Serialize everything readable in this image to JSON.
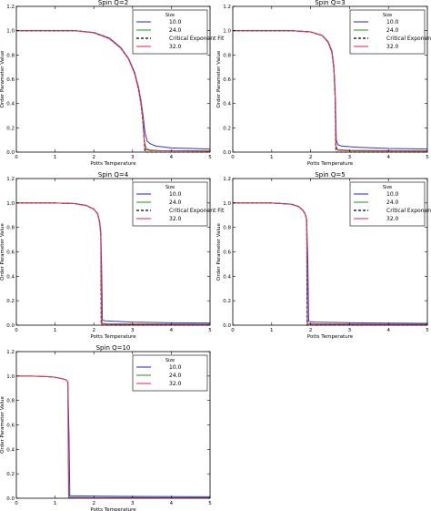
{
  "chart_data": [
    {
      "type": "line",
      "title": "Spin Q=2",
      "xlabel": "Potts Temperature",
      "ylabel": "Order Parameter Value",
      "xlim": [
        0,
        5
      ],
      "ylim": [
        0,
        1.2
      ],
      "xticks": [
        "0",
        "1",
        "2",
        "3",
        "4",
        "5"
      ],
      "yticks": [
        "0.0",
        "0.2",
        "0.4",
        "0.6",
        "0.8",
        "1.0",
        "1.2"
      ],
      "legend": {
        "title": "Size",
        "location": "top-right"
      },
      "grid": false,
      "series": [
        {
          "name": "10.0",
          "color": "#3333cc",
          "dash": false,
          "x": [
            0,
            1.5,
            2.0,
            2.4,
            2.7,
            2.9,
            3.05,
            3.15,
            3.22,
            3.27,
            3.32,
            3.38,
            3.45,
            3.6,
            4.0,
            5.0
          ],
          "y": [
            1.0,
            1.0,
            0.985,
            0.94,
            0.86,
            0.77,
            0.66,
            0.54,
            0.42,
            0.3,
            0.16,
            0.09,
            0.07,
            0.05,
            0.035,
            0.025
          ]
        },
        {
          "name": "24.0",
          "color": "#2ca02c",
          "dash": false,
          "x": [
            0,
            1.5,
            2.0,
            2.4,
            2.7,
            2.9,
            3.05,
            3.15,
            3.22,
            3.27,
            3.3,
            3.35,
            3.45,
            3.7,
            5.0
          ],
          "y": [
            1.0,
            1.0,
            0.983,
            0.935,
            0.855,
            0.765,
            0.65,
            0.53,
            0.4,
            0.26,
            0.1,
            0.03,
            0.018,
            0.012,
            0.01
          ]
        },
        {
          "name": "Critical Exponent Fit",
          "color": "#000000",
          "dash": true,
          "x": [
            0,
            1.5,
            2.0,
            2.4,
            2.7,
            2.9,
            3.05,
            3.15,
            3.22,
            3.27,
            3.3,
            3.32,
            5.0
          ],
          "y": [
            1.0,
            1.0,
            0.983,
            0.935,
            0.855,
            0.765,
            0.65,
            0.52,
            0.39,
            0.24,
            0.1,
            0.0,
            0.0
          ]
        },
        {
          "name": "32.0",
          "color": "#e8315a",
          "dash": false,
          "x": [
            0,
            1.5,
            2.0,
            2.4,
            2.7,
            2.9,
            3.05,
            3.15,
            3.22,
            3.27,
            3.3,
            3.33,
            3.45,
            5.0
          ],
          "y": [
            1.0,
            1.0,
            0.983,
            0.935,
            0.855,
            0.765,
            0.65,
            0.53,
            0.4,
            0.26,
            0.1,
            0.02,
            0.012,
            0.008
          ]
        }
      ]
    },
    {
      "type": "line",
      "title": "Spin Q=3",
      "xlabel": "Potts Temperature",
      "ylabel": "Order Parameter Value",
      "xlim": [
        0,
        5
      ],
      "ylim": [
        0,
        1.2
      ],
      "xticks": [
        "0",
        "1",
        "2",
        "3",
        "4",
        "5"
      ],
      "yticks": [
        "0.0",
        "0.2",
        "0.4",
        "0.6",
        "0.8",
        "1.0",
        "1.2"
      ],
      "legend": {
        "title": "Size",
        "location": "top-right"
      },
      "grid": false,
      "series": [
        {
          "name": "10.0",
          "color": "#3333cc",
          "dash": false,
          "x": [
            0,
            1.5,
            2.0,
            2.3,
            2.45,
            2.55,
            2.6,
            2.63,
            2.66,
            2.7,
            2.8,
            3.2,
            4.0,
            5.0
          ],
          "y": [
            1.0,
            1.0,
            0.99,
            0.96,
            0.91,
            0.83,
            0.7,
            0.5,
            0.1,
            0.06,
            0.05,
            0.04,
            0.03,
            0.025
          ]
        },
        {
          "name": "24.0",
          "color": "#2ca02c",
          "dash": false,
          "x": [
            0,
            1.5,
            2.0,
            2.3,
            2.45,
            2.55,
            2.6,
            2.63,
            2.65,
            2.7,
            3.0,
            5.0
          ],
          "y": [
            1.0,
            1.0,
            0.99,
            0.96,
            0.905,
            0.82,
            0.68,
            0.45,
            0.05,
            0.02,
            0.015,
            0.01
          ]
        },
        {
          "name": "Critical Exponent Fit",
          "color": "#000000",
          "dash": true,
          "x": [
            0,
            1.5,
            2.0,
            2.3,
            2.45,
            2.55,
            2.6,
            2.63,
            2.65,
            5.0
          ],
          "y": [
            1.0,
            1.0,
            0.99,
            0.96,
            0.905,
            0.82,
            0.68,
            0.45,
            0.0,
            0.0
          ]
        },
        {
          "name": "32.0",
          "color": "#e8315a",
          "dash": false,
          "x": [
            0,
            1.5,
            2.0,
            2.3,
            2.45,
            2.55,
            2.6,
            2.63,
            2.65,
            2.7,
            3.0,
            5.0
          ],
          "y": [
            1.0,
            1.0,
            0.99,
            0.96,
            0.905,
            0.82,
            0.68,
            0.45,
            0.04,
            0.015,
            0.01,
            0.008
          ]
        }
      ]
    },
    {
      "type": "line",
      "title": "Spin Q=4",
      "xlabel": "Potts Temperature",
      "ylabel": "Order Parameter Value",
      "xlim": [
        0,
        5
      ],
      "ylim": [
        0,
        1.2
      ],
      "xticks": [
        "0",
        "1",
        "2",
        "3",
        "4",
        "5"
      ],
      "yticks": [
        "0.0",
        "0.2",
        "0.4",
        "0.6",
        "0.8",
        "1.0",
        "1.2"
      ],
      "legend": {
        "title": "Size",
        "location": "top-right"
      },
      "grid": false,
      "series": [
        {
          "name": "10.0",
          "color": "#3333cc",
          "dash": false,
          "x": [
            0,
            1.0,
            1.5,
            1.8,
            2.0,
            2.1,
            2.15,
            2.18,
            2.2,
            2.22,
            2.3,
            3.0,
            4.0,
            5.0
          ],
          "y": [
            1.0,
            1.0,
            0.995,
            0.98,
            0.95,
            0.91,
            0.85,
            0.76,
            0.5,
            0.04,
            0.035,
            0.025,
            0.02,
            0.018
          ]
        },
        {
          "name": "24.0",
          "color": "#2ca02c",
          "dash": false,
          "x": [
            0,
            1.0,
            1.5,
            1.8,
            2.0,
            2.1,
            2.15,
            2.18,
            2.19,
            2.21,
            2.4,
            5.0
          ],
          "y": [
            1.0,
            1.0,
            0.995,
            0.98,
            0.95,
            0.91,
            0.84,
            0.74,
            0.3,
            0.015,
            0.01,
            0.008
          ]
        },
        {
          "name": "Critical Exponent Fit",
          "color": "#000000",
          "dash": true,
          "x": [
            0,
            1.0,
            1.5,
            1.8,
            2.0,
            2.1,
            2.15,
            2.18,
            2.19,
            5.0
          ],
          "y": [
            1.0,
            1.0,
            0.995,
            0.98,
            0.95,
            0.91,
            0.84,
            0.74,
            0.0,
            0.0
          ]
        },
        {
          "name": "32.0",
          "color": "#e8315a",
          "dash": false,
          "x": [
            0,
            1.0,
            1.5,
            1.8,
            2.0,
            2.1,
            2.15,
            2.18,
            2.19,
            2.2,
            2.4,
            5.0
          ],
          "y": [
            1.0,
            1.0,
            0.995,
            0.98,
            0.95,
            0.91,
            0.84,
            0.74,
            0.4,
            0.01,
            0.008,
            0.006
          ]
        }
      ]
    },
    {
      "type": "line",
      "title": "Spin Q=5",
      "xlabel": "Potts Temperature",
      "ylabel": "Order Parameter Value",
      "xlim": [
        0,
        5
      ],
      "ylim": [
        0,
        1.2
      ],
      "xticks": [
        "0",
        "1",
        "2",
        "3",
        "4",
        "5"
      ],
      "yticks": [
        "0.0",
        "0.2",
        "0.4",
        "0.6",
        "0.8",
        "1.0",
        "1.2"
      ],
      "legend": {
        "title": "Size",
        "location": "top-right"
      },
      "grid": false,
      "series": [
        {
          "name": "10.0",
          "color": "#3333cc",
          "dash": false,
          "x": [
            0,
            1.0,
            1.5,
            1.7,
            1.8,
            1.86,
            1.9,
            1.93,
            1.95,
            2.1,
            3.0,
            5.0
          ],
          "y": [
            1.0,
            1.0,
            0.99,
            0.97,
            0.94,
            0.91,
            0.86,
            0.5,
            0.03,
            0.025,
            0.02,
            0.015
          ]
        },
        {
          "name": "24.0",
          "color": "#2ca02c",
          "dash": false,
          "x": [
            0,
            1.0,
            1.5,
            1.7,
            1.8,
            1.86,
            1.9,
            1.91,
            1.92,
            2.2,
            5.0
          ],
          "y": [
            1.0,
            1.0,
            0.99,
            0.97,
            0.94,
            0.91,
            0.86,
            0.3,
            0.012,
            0.01,
            0.008
          ]
        },
        {
          "name": "Critical Exponent Fit",
          "color": "#000000",
          "dash": true,
          "x": [
            0,
            1.0,
            1.5,
            1.7,
            1.8,
            1.86,
            1.9,
            1.91,
            5.0
          ],
          "y": [
            1.0,
            1.0,
            0.99,
            0.97,
            0.94,
            0.91,
            0.86,
            0.0,
            0.0
          ]
        },
        {
          "name": "32.0",
          "color": "#e8315a",
          "dash": false,
          "x": [
            0,
            1.0,
            1.5,
            1.7,
            1.8,
            1.86,
            1.9,
            1.91,
            1.92,
            2.2,
            5.0
          ],
          "y": [
            1.0,
            1.0,
            0.99,
            0.97,
            0.94,
            0.91,
            0.86,
            0.4,
            0.01,
            0.008,
            0.006
          ]
        }
      ]
    },
    {
      "type": "line",
      "title": "Spin Q=10",
      "xlabel": "Potts Temperature",
      "ylabel": "Order Parameter Value",
      "xlim": [
        0,
        5
      ],
      "ylim": [
        0,
        1.2
      ],
      "xticks": [
        "0",
        "1",
        "2",
        "3",
        "4",
        "5"
      ],
      "yticks": [
        "0.0",
        "0.2",
        "0.4",
        "0.6",
        "0.8",
        "1.0",
        "1.2"
      ],
      "legend": {
        "title": "Size",
        "location": "top-right"
      },
      "grid": false,
      "series": [
        {
          "name": "10.0",
          "color": "#3333cc",
          "dash": false,
          "x": [
            0,
            0.4,
            0.8,
            1.0,
            1.15,
            1.28,
            1.33,
            1.36,
            1.38,
            1.5,
            2.0,
            3.0,
            5.0
          ],
          "y": [
            1.0,
            1.0,
            0.995,
            0.99,
            0.98,
            0.97,
            0.95,
            0.5,
            0.02,
            0.02,
            0.018,
            0.015,
            0.012
          ]
        },
        {
          "name": "24.0",
          "color": "#2ca02c",
          "dash": false,
          "x": [
            0,
            0.4,
            0.8,
            1.0,
            1.15,
            1.28,
            1.33,
            1.34,
            1.36,
            2.0,
            5.0
          ],
          "y": [
            1.0,
            1.0,
            0.995,
            0.99,
            0.98,
            0.97,
            0.95,
            0.3,
            0.008,
            0.006,
            0.005
          ]
        },
        {
          "name": "32.0",
          "color": "#e8315a",
          "dash": false,
          "x": [
            0,
            0.4,
            0.8,
            1.0,
            1.15,
            1.28,
            1.33,
            1.34,
            1.35,
            2.0,
            5.0
          ],
          "y": [
            1.0,
            1.0,
            0.995,
            0.99,
            0.98,
            0.97,
            0.95,
            0.4,
            0.005,
            0.004,
            0.003
          ]
        }
      ]
    }
  ]
}
